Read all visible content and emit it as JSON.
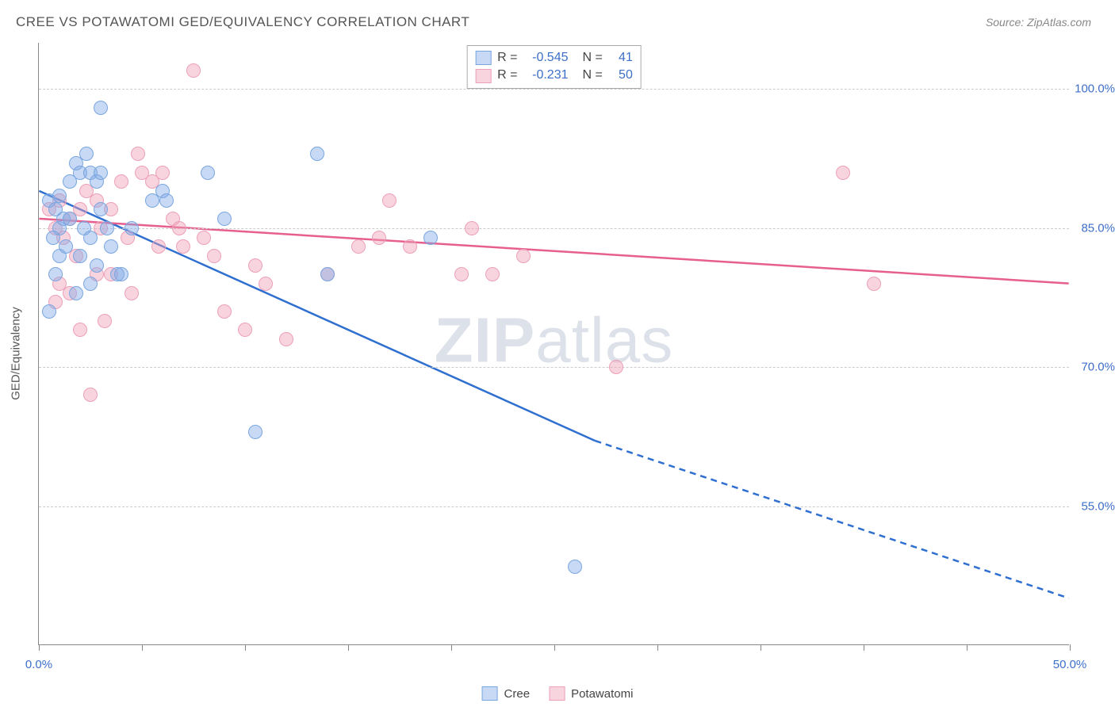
{
  "title": "CREE VS POTAWATOMI GED/EQUIVALENCY CORRELATION CHART",
  "source": "Source: ZipAtlas.com",
  "watermark_bold": "ZIP",
  "watermark_rest": "atlas",
  "ylabel": "GED/Equivalency",
  "chart": {
    "type": "scatter",
    "xlim": [
      0,
      50
    ],
    "ylim": [
      40,
      105
    ],
    "xtick_positions": [
      0,
      5,
      10,
      15,
      20,
      25,
      30,
      35,
      40,
      45,
      50
    ],
    "xtick_labels": {
      "0": "0.0%",
      "50": "50.0%"
    },
    "ytick_positions": [
      55,
      70,
      85,
      100
    ],
    "ytick_labels": [
      "55.0%",
      "70.0%",
      "85.0%",
      "100.0%"
    ],
    "grid_color": "#cccccc",
    "axis_color": "#888888",
    "tick_label_color": "#3d6fc9",
    "background_color": "#ffffff",
    "series": [
      {
        "name": "Cree",
        "fill": "rgba(130,170,230,0.45)",
        "stroke": "#7aa6e0",
        "line_color": "#2f6fd0",
        "R": "-0.545",
        "N": "41",
        "points": [
          [
            0.5,
            88
          ],
          [
            0.8,
            87
          ],
          [
            1.0,
            88.5
          ],
          [
            1.2,
            86
          ],
          [
            1.0,
            85
          ],
          [
            0.7,
            84
          ],
          [
            1.5,
            90
          ],
          [
            1.8,
            92
          ],
          [
            2.0,
            91
          ],
          [
            2.3,
            93
          ],
          [
            2.5,
            91
          ],
          [
            2.8,
            90
          ],
          [
            2.2,
            85
          ],
          [
            1.5,
            86
          ],
          [
            1.0,
            82
          ],
          [
            1.3,
            83
          ],
          [
            0.8,
            80
          ],
          [
            0.5,
            76
          ],
          [
            2.0,
            82
          ],
          [
            2.5,
            84
          ],
          [
            3.0,
            87
          ],
          [
            3.3,
            85
          ],
          [
            3.8,
            80
          ],
          [
            4.0,
            80
          ],
          [
            4.5,
            85
          ],
          [
            5.5,
            88
          ],
          [
            6.0,
            89
          ],
          [
            6.2,
            88
          ],
          [
            8.2,
            91
          ],
          [
            9.0,
            86
          ],
          [
            3.0,
            98
          ],
          [
            13.5,
            93
          ],
          [
            14.0,
            80
          ],
          [
            19.0,
            84
          ],
          [
            10.5,
            63
          ],
          [
            26.0,
            48.5
          ],
          [
            2.5,
            79
          ],
          [
            1.8,
            78
          ],
          [
            3.5,
            83
          ],
          [
            2.8,
            81
          ],
          [
            3.0,
            91
          ]
        ],
        "trend_solid": {
          "x1": 0,
          "y1": 89,
          "x2": 27,
          "y2": 62
        },
        "trend_dashed": {
          "x1": 27,
          "y1": 62,
          "x2": 50,
          "y2": 45
        }
      },
      {
        "name": "Potawatomi",
        "fill": "rgba(240,160,185,0.45)",
        "stroke": "#eda0b8",
        "line_color": "#e65f8e",
        "R": "-0.231",
        "N": "50",
        "points": [
          [
            0.5,
            87
          ],
          [
            1.0,
            88
          ],
          [
            1.5,
            86
          ],
          [
            1.2,
            84
          ],
          [
            0.8,
            85
          ],
          [
            2.0,
            87
          ],
          [
            2.3,
            89
          ],
          [
            2.8,
            88
          ],
          [
            3.0,
            85
          ],
          [
            3.5,
            87
          ],
          [
            4.0,
            90
          ],
          [
            4.3,
            84
          ],
          [
            4.8,
            93
          ],
          [
            5.0,
            91
          ],
          [
            5.5,
            90
          ],
          [
            6.0,
            91
          ],
          [
            6.5,
            86
          ],
          [
            7.0,
            83
          ],
          [
            7.5,
            102
          ],
          [
            8.0,
            84
          ],
          [
            8.5,
            82
          ],
          [
            9.0,
            76
          ],
          [
            10.0,
            74
          ],
          [
            10.5,
            81
          ],
          [
            11.0,
            79
          ],
          [
            12.0,
            73
          ],
          [
            14.0,
            80
          ],
          [
            15.5,
            83
          ],
          [
            16.5,
            84
          ],
          [
            17.0,
            88
          ],
          [
            18.0,
            83
          ],
          [
            20.5,
            80
          ],
          [
            21.0,
            85
          ],
          [
            22.0,
            80
          ],
          [
            23.5,
            82
          ],
          [
            28.0,
            70
          ],
          [
            39.0,
            91
          ],
          [
            40.5,
            79
          ],
          [
            1.5,
            78
          ],
          [
            2.0,
            74
          ],
          [
            2.5,
            67
          ],
          [
            3.5,
            80
          ],
          [
            4.5,
            78
          ],
          [
            1.8,
            82
          ],
          [
            2.8,
            80
          ],
          [
            1.0,
            79
          ],
          [
            0.8,
            77
          ],
          [
            3.2,
            75
          ],
          [
            5.8,
            83
          ],
          [
            6.8,
            85
          ]
        ],
        "trend_solid": {
          "x1": 0,
          "y1": 86,
          "x2": 50,
          "y2": 79
        }
      }
    ]
  },
  "stats_legend": {
    "label_R": "R =",
    "label_N": "N ="
  },
  "bottom_legend": {
    "items": [
      "Cree",
      "Potawatomi"
    ]
  }
}
